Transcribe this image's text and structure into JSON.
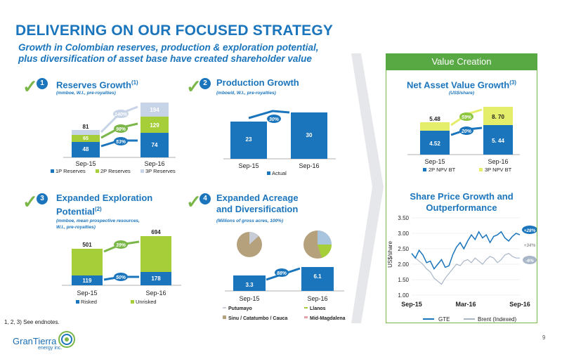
{
  "title": "DELIVERING ON OUR FOCUSED STRATEGY",
  "subtitle_line1": "Growth in Colombian reserves, production & exploration potential,",
  "subtitle_line2": "plus diversification  of asset base have created shareholder value",
  "sections": {
    "s1": {
      "num": "1",
      "title": "Reserves Growth",
      "sup": "(1)",
      "sub": "(mmboe, W.I., pre-royalties)"
    },
    "s2": {
      "num": "2",
      "title": "Production Growth",
      "sub": "(mboe/d, W.I., pre-royalties)"
    },
    "s3": {
      "num": "3",
      "title1": "Expanded Exploration",
      "title2": "Potential",
      "sup": "(2)",
      "sub1": "(mmboe, mean prospective resources,",
      "sub2": "W.I., pre-royalties)"
    },
    "s4": {
      "num": "4",
      "title1": "Expanded Acreage",
      "title2": "and Diversification",
      "sub": "(Millions of gross acres, 100%)"
    }
  },
  "value_creation": {
    "header": "Value Creation",
    "nav_title": "Net Asset Value Growth",
    "nav_sup": "(3)",
    "nav_sub": "(US$/share)",
    "sp_title1": "Share Price Growth and",
    "sp_title2": "Outperformance"
  },
  "endnote": "1, 2, 3) See endnotes.",
  "page_number": "9",
  "logo": {
    "name": "GranTierra",
    "sub": "energy inc."
  },
  "colors": {
    "blue": "#1b75bc",
    "green": "#a6ce39",
    "lightblue": "#a8bcd8",
    "darkgreen": "#58a843",
    "tan": "#b5a27c",
    "gray": "#c7ccd6"
  },
  "chart_data": [
    {
      "type": "bar",
      "name": "reserves",
      "categories": [
        "Sep-15",
        "Sep-16"
      ],
      "series": [
        {
          "name": "1P Reserves",
          "values": [
            48,
            74
          ]
        },
        {
          "name": "2P Reserves",
          "values": [
            65,
            129
          ]
        },
        {
          "name": "3P Reserves",
          "values": [
            81,
            194
          ]
        }
      ],
      "annotations": [
        "140%",
        "98%",
        "53%"
      ]
    },
    {
      "type": "bar",
      "name": "production",
      "categories": [
        "Sep-15",
        "Sep-16"
      ],
      "series": [
        {
          "name": "Actual",
          "values": [
            23,
            30
          ]
        }
      ],
      "annotations": [
        "30%"
      ]
    },
    {
      "type": "bar",
      "name": "exploration",
      "categories": [
        "Sep-15",
        "Sep-16"
      ],
      "series": [
        {
          "name": "Risked",
          "values": [
            119,
            178
          ]
        },
        {
          "name": "Unrisked",
          "values": [
            501,
            694
          ]
        }
      ],
      "annotations": [
        "39%",
        "50%"
      ]
    },
    {
      "type": "bar",
      "name": "acreage",
      "categories": [
        "Sep-15",
        "Sep-16"
      ],
      "values": [
        3.3,
        6.1
      ],
      "annotations": [
        "88%"
      ],
      "legend": [
        "Putumayo",
        "Llanos",
        "Sinu / Catatumbo / Cauca",
        "Mid-Magdalena"
      ]
    },
    {
      "type": "bar",
      "name": "nav",
      "categories": [
        "Sep-15",
        "Sep-16"
      ],
      "series": [
        {
          "name": "2P NPV BT",
          "values": [
            4.52,
            5.44
          ]
        },
        {
          "name": "3P NPV BT",
          "values": [
            5.48,
            8.7
          ]
        }
      ],
      "annotations": [
        "59%",
        "20%"
      ]
    },
    {
      "type": "line",
      "name": "share_price",
      "ylabel": "US$/share",
      "ylim": [
        1.0,
        3.5
      ],
      "yticks": [
        "1.00",
        "1.50",
        "2.00",
        "2.50",
        "3.00",
        "3.50"
      ],
      "xticks": [
        "Sep-15",
        "Mar-16",
        "Sep-16"
      ],
      "series": [
        {
          "name": "GTE",
          "values": [
            2.35,
            2.2,
            2.45,
            2.3,
            2.05,
            2.1,
            1.85,
            2.0,
            2.15,
            1.9,
            1.95,
            2.3,
            2.55,
            2.7,
            2.5,
            2.75,
            2.95,
            2.8,
            3.05,
            2.85,
            2.95,
            2.7,
            2.9,
            2.95,
            3.05,
            2.85,
            2.75,
            2.9,
            3.0,
            2.95
          ]
        },
        {
          "name": "Brent (Indexed)",
          "values": [
            2.35,
            2.2,
            2.1,
            2.0,
            1.85,
            1.75,
            1.55,
            1.45,
            1.35,
            1.55,
            1.7,
            1.85,
            2.0,
            1.95,
            2.1,
            2.15,
            2.05,
            2.2,
            2.1,
            2.0,
            2.15,
            2.25,
            2.2,
            2.05,
            2.15,
            2.3,
            2.35,
            2.25,
            2.2,
            2.2
          ]
        }
      ],
      "annotations": [
        "+28%",
        "+34%",
        "-6%"
      ]
    }
  ]
}
